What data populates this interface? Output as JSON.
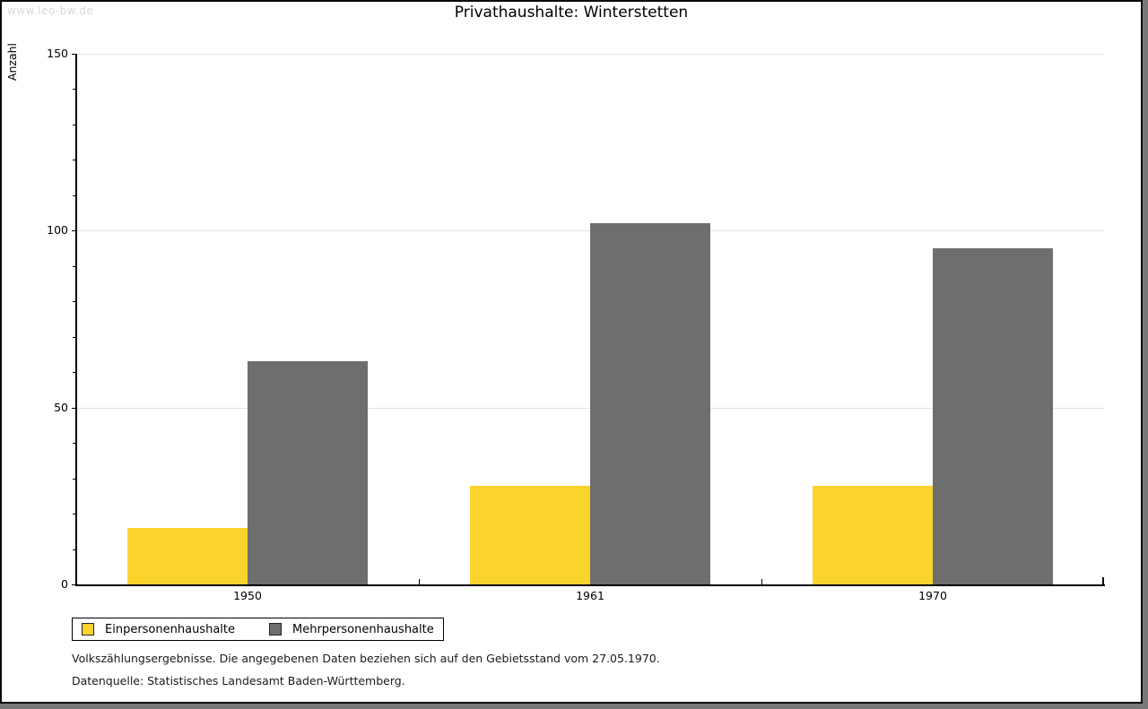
{
  "watermark": "www.leo-bw.de",
  "title": "Privathaushalte: Winterstetten",
  "chart_data": {
    "type": "bar",
    "title": "Privathaushalte: Winterstetten",
    "categories": [
      "1950",
      "1961",
      "1970"
    ],
    "series": [
      {
        "name": "Einpersonenhaushalte",
        "color": "#fbd32d",
        "values": [
          16,
          28,
          28
        ]
      },
      {
        "name": "Mehrpersonenhaushalte",
        "color": "#6e6e6e",
        "values": [
          63,
          102,
          95
        ]
      }
    ],
    "xlabel": "",
    "ylabel": "Anzahl",
    "ylim": [
      0,
      150
    ],
    "yticks": [
      0,
      50,
      100,
      150
    ],
    "minor_tick_step": 10,
    "grid": true,
    "legend_position": "bottom-left"
  },
  "footnotes": [
    "Volkszählungsergebnisse. Die angegebenen Daten beziehen sich auf den Gebietsstand vom 27.05.1970.",
    "Datenquelle: Statistisches Landesamt Baden-Württemberg."
  ],
  "colors": {
    "bar_yellow": "#fbd32d",
    "bar_gray": "#6e6e6e",
    "gridline": "#e3e3e3",
    "axis": "#000000",
    "watermark": "#d8d8d8",
    "frame_shadow": "#787878"
  }
}
